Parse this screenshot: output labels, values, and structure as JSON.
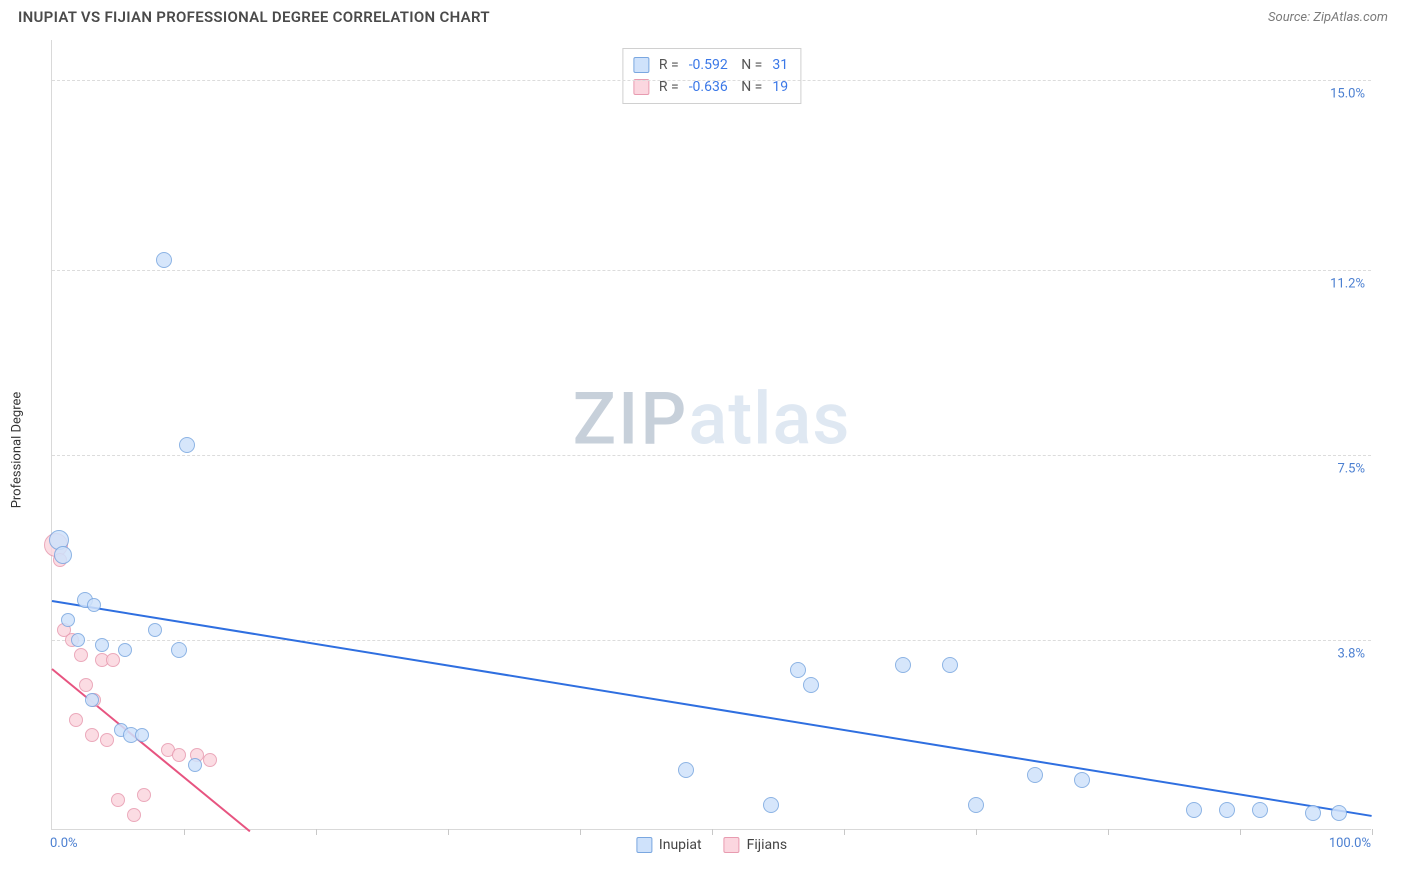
{
  "header": {
    "title": "INUPIAT VS FIJIAN PROFESSIONAL DEGREE CORRELATION CHART",
    "source": "Source: ZipAtlas.com"
  },
  "ylabel": "Professional Degree",
  "watermark": {
    "part1": "ZIP",
    "part2": "atlas"
  },
  "chart": {
    "type": "scatter",
    "background_color": "#ffffff",
    "grid_color": "#dcdcdc",
    "axis_color": "#d9d9d9",
    "xlim": [
      0,
      100
    ],
    "ylim": [
      0,
      15.8
    ],
    "xtick_positions": [
      0,
      10,
      20,
      30,
      40,
      50,
      60,
      70,
      80,
      90,
      100
    ],
    "x_left_label": "0.0%",
    "x_right_label": "100.0%",
    "yticks": [
      {
        "value": 15.0,
        "label": "15.0%"
      },
      {
        "value": 11.2,
        "label": "11.2%"
      },
      {
        "value": 7.5,
        "label": "7.5%"
      },
      {
        "value": 3.8,
        "label": "3.8%"
      }
    ],
    "series": [
      {
        "name": "Inupiat",
        "fill": "#cfe2fb",
        "stroke": "#7aa7e0",
        "line_color": "#2f6fe0",
        "R": "-0.592",
        "N": "31",
        "trend": {
          "x1": 0,
          "y1": 4.6,
          "x2": 100,
          "y2": 0.3
        },
        "points": [
          {
            "x": 0.5,
            "y": 5.8,
            "r": 10
          },
          {
            "x": 0.8,
            "y": 5.5,
            "r": 9
          },
          {
            "x": 2.5,
            "y": 4.6,
            "r": 8
          },
          {
            "x": 3.2,
            "y": 4.5,
            "r": 7
          },
          {
            "x": 8.5,
            "y": 11.4,
            "r": 8
          },
          {
            "x": 10.2,
            "y": 7.7,
            "r": 8
          },
          {
            "x": 1.2,
            "y": 4.2,
            "r": 7
          },
          {
            "x": 2.0,
            "y": 3.8,
            "r": 7
          },
          {
            "x": 3.8,
            "y": 3.7,
            "r": 7
          },
          {
            "x": 5.5,
            "y": 3.6,
            "r": 7
          },
          {
            "x": 7.8,
            "y": 4.0,
            "r": 7
          },
          {
            "x": 9.6,
            "y": 3.6,
            "r": 8
          },
          {
            "x": 3.0,
            "y": 2.6,
            "r": 7
          },
          {
            "x": 5.2,
            "y": 2.0,
            "r": 7
          },
          {
            "x": 6.0,
            "y": 1.9,
            "r": 8
          },
          {
            "x": 6.8,
            "y": 1.9,
            "r": 7
          },
          {
            "x": 10.8,
            "y": 1.3,
            "r": 7
          },
          {
            "x": 48.0,
            "y": 1.2,
            "r": 8
          },
          {
            "x": 54.5,
            "y": 0.5,
            "r": 8
          },
          {
            "x": 56.5,
            "y": 3.2,
            "r": 8
          },
          {
            "x": 57.5,
            "y": 2.9,
            "r": 8
          },
          {
            "x": 64.5,
            "y": 3.3,
            "r": 8
          },
          {
            "x": 68.0,
            "y": 3.3,
            "r": 8
          },
          {
            "x": 70.0,
            "y": 0.5,
            "r": 8
          },
          {
            "x": 74.5,
            "y": 1.1,
            "r": 8
          },
          {
            "x": 78.0,
            "y": 1.0,
            "r": 8
          },
          {
            "x": 86.5,
            "y": 0.4,
            "r": 8
          },
          {
            "x": 89.0,
            "y": 0.4,
            "r": 8
          },
          {
            "x": 91.5,
            "y": 0.4,
            "r": 8
          },
          {
            "x": 95.5,
            "y": 0.35,
            "r": 8
          },
          {
            "x": 97.5,
            "y": 0.35,
            "r": 8
          }
        ]
      },
      {
        "name": "Fijians",
        "fill": "#fbd6df",
        "stroke": "#e89bb0",
        "line_color": "#e75480",
        "R": "-0.636",
        "N": "19",
        "trend": {
          "x1": 0,
          "y1": 3.25,
          "x2": 15,
          "y2": 0.0
        },
        "points": [
          {
            "x": 0.3,
            "y": 5.7,
            "r": 12
          },
          {
            "x": 0.6,
            "y": 5.4,
            "r": 7
          },
          {
            "x": 0.9,
            "y": 4.0,
            "r": 7
          },
          {
            "x": 1.5,
            "y": 3.8,
            "r": 7
          },
          {
            "x": 2.2,
            "y": 3.5,
            "r": 7
          },
          {
            "x": 2.6,
            "y": 2.9,
            "r": 7
          },
          {
            "x": 3.2,
            "y": 2.6,
            "r": 7
          },
          {
            "x": 3.8,
            "y": 3.4,
            "r": 7
          },
          {
            "x": 4.6,
            "y": 3.4,
            "r": 7
          },
          {
            "x": 1.8,
            "y": 2.2,
            "r": 7
          },
          {
            "x": 3.0,
            "y": 1.9,
            "r": 7
          },
          {
            "x": 4.2,
            "y": 1.8,
            "r": 7
          },
          {
            "x": 5.0,
            "y": 0.6,
            "r": 7
          },
          {
            "x": 6.2,
            "y": 0.3,
            "r": 7
          },
          {
            "x": 7.0,
            "y": 0.7,
            "r": 7
          },
          {
            "x": 8.8,
            "y": 1.6,
            "r": 7
          },
          {
            "x": 9.6,
            "y": 1.5,
            "r": 7
          },
          {
            "x": 11.0,
            "y": 1.5,
            "r": 7
          },
          {
            "x": 12.0,
            "y": 1.4,
            "r": 7
          }
        ]
      }
    ],
    "legend_bottom": [
      {
        "label": "Inupiat",
        "fill": "#cfe2fb",
        "stroke": "#7aa7e0"
      },
      {
        "label": "Fijians",
        "fill": "#fbd6df",
        "stroke": "#e89bb0"
      }
    ]
  }
}
